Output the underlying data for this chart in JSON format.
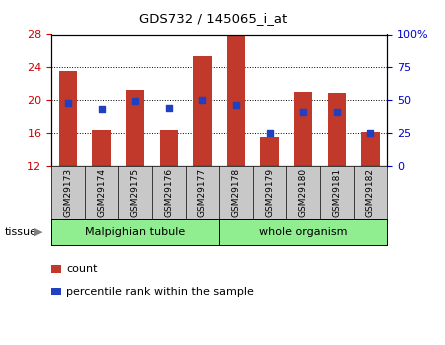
{
  "title": "GDS732 / 145065_i_at",
  "samples": [
    "GSM29173",
    "GSM29174",
    "GSM29175",
    "GSM29176",
    "GSM29177",
    "GSM29178",
    "GSM29179",
    "GSM29180",
    "GSM29181",
    "GSM29182"
  ],
  "counts": [
    23.5,
    16.4,
    21.2,
    16.4,
    25.4,
    28.0,
    15.5,
    21.0,
    20.8,
    16.1
  ],
  "percentile_ranks": [
    48,
    43,
    49,
    44,
    50,
    46,
    25,
    41,
    41,
    25
  ],
  "bar_color": "#c0392b",
  "dot_color": "#2040c0",
  "ymin": 12,
  "ymax": 28,
  "y_ticks": [
    12,
    16,
    20,
    24,
    28
  ],
  "y2_ticks": [
    0,
    25,
    50,
    75,
    100
  ],
  "tissue_label": "tissue",
  "group1_label": "Malpighian tubule",
  "group2_label": "whole organism",
  "group_color": "#90ee90",
  "legend_count": "count",
  "legend_percentile": "percentile rank within the sample",
  "tick_label_color_left": "#cc0000",
  "tick_label_color_right": "#0000cc",
  "bar_bottom": 12,
  "xlabel_bg": "#c8c8c8"
}
